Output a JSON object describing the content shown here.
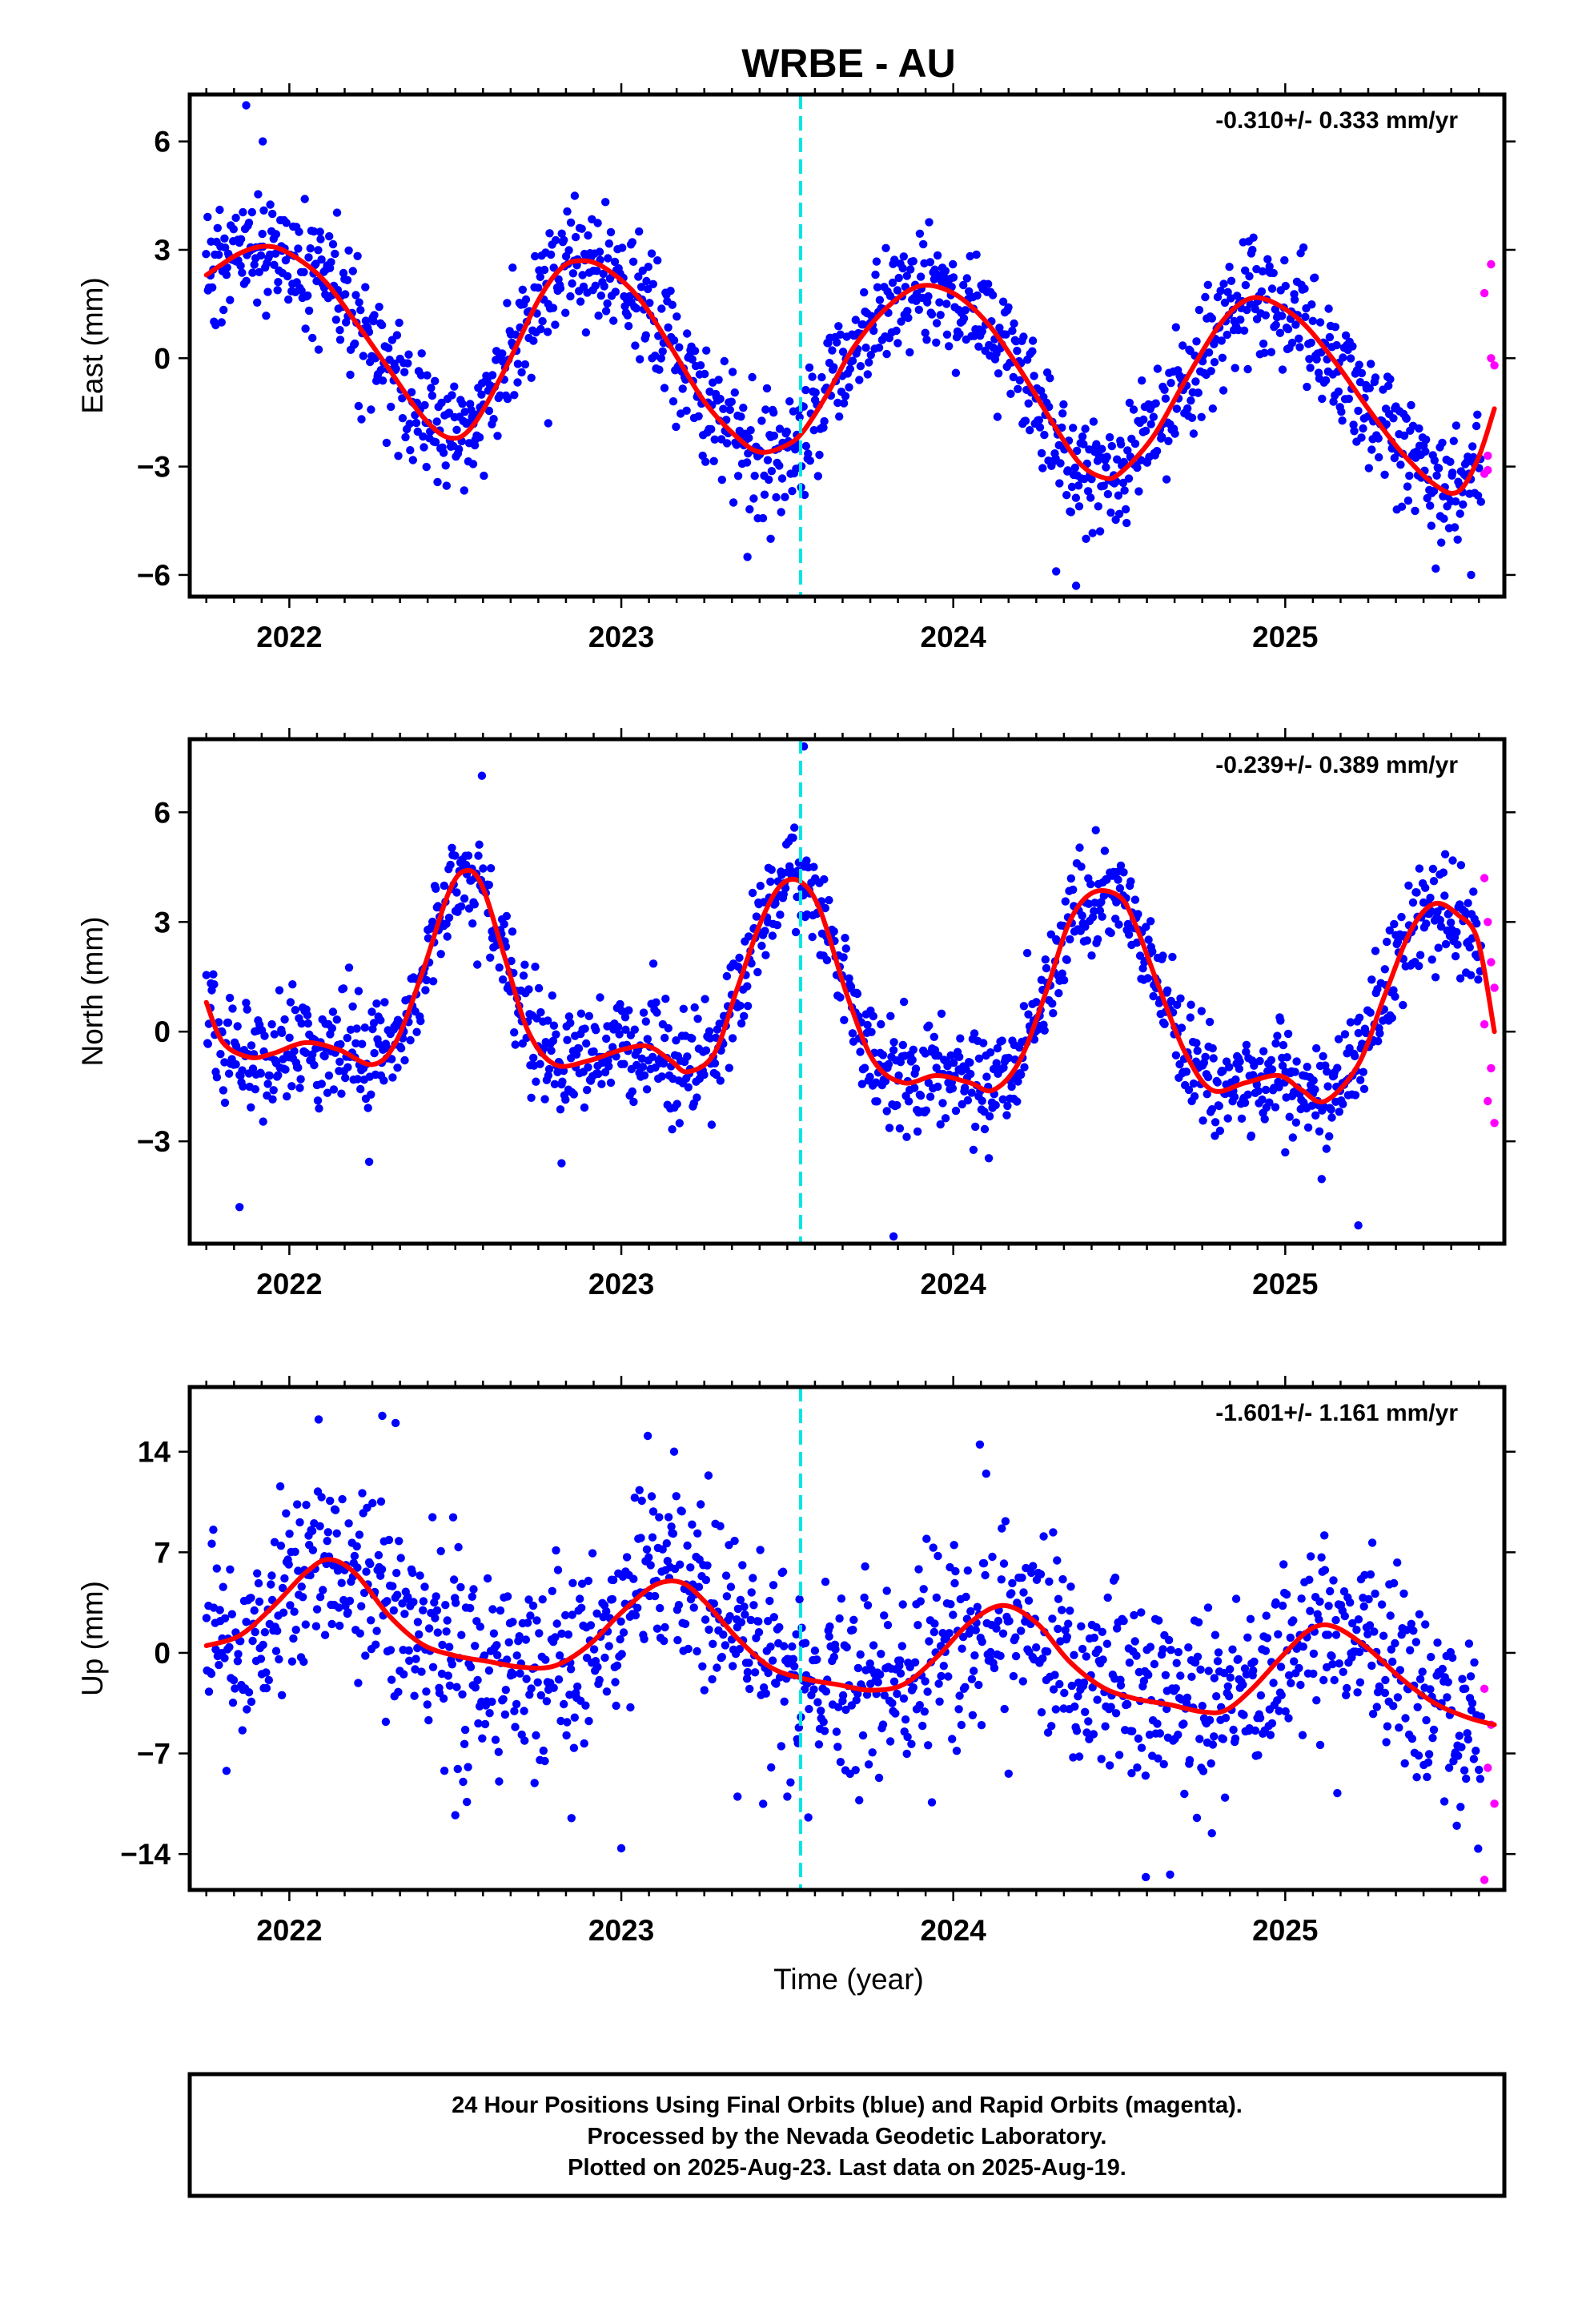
{
  "title": "WRBE - AU",
  "footer": {
    "line1": "24 Hour Positions Using Final Orbits (blue) and Rapid Orbits (magenta).",
    "line2": "Processed by the Nevada Geodetic Laboratory.",
    "line3": "Plotted on 2025-Aug-23. Last data on 2025-Aug-19."
  },
  "xlabel": "Time (year)",
  "colors": {
    "final_orbits": "#0000ff",
    "rapid_orbits": "#ff00ff",
    "model_fit": "#ff0000",
    "event_line": "#00e5e5",
    "frame": "#000000"
  },
  "chart_data": [
    {
      "type": "scatter",
      "panel": "east",
      "ylabel": "East (mm)",
      "rate_label": "-0.310+/- 0.333 mm/yr",
      "xlim": [
        2021.7,
        2025.66
      ],
      "ylim": [
        -6.6,
        7.3
      ],
      "xticks": [
        2022,
        2023,
        2024,
        2025
      ],
      "yticks": [
        -6,
        -3,
        0,
        3,
        6
      ],
      "event_line_x": 2023.54,
      "fit": {
        "x": [
          2021.75,
          2021.85,
          2021.93,
          2022.0,
          2022.1,
          2022.2,
          2022.3,
          2022.4,
          2022.48,
          2022.55,
          2022.65,
          2022.75,
          2022.82,
          2022.88,
          2022.95,
          2023.05,
          2023.15,
          2023.25,
          2023.35,
          2023.42,
          2023.5,
          2023.55,
          2023.62,
          2023.7,
          2023.8,
          2023.9,
          2024.0,
          2024.1,
          2024.2,
          2024.3,
          2024.38,
          2024.45,
          2024.5,
          2024.6,
          2024.7,
          2024.8,
          2024.88,
          2024.95,
          2025.05,
          2025.15,
          2025.25,
          2025.35,
          2025.45,
          2025.52,
          2025.58,
          2025.63
        ],
        "y": [
          2.3,
          2.9,
          3.1,
          2.9,
          2.2,
          1.0,
          -0.3,
          -1.6,
          -2.2,
          -1.9,
          -0.3,
          1.6,
          2.5,
          2.7,
          2.5,
          1.7,
          0.3,
          -1.2,
          -2.2,
          -2.6,
          -2.4,
          -2.0,
          -1.0,
          0.3,
          1.4,
          2.0,
          1.8,
          1.0,
          -0.3,
          -1.8,
          -2.9,
          -3.3,
          -3.2,
          -2.2,
          -0.6,
          0.9,
          1.6,
          1.6,
          1.0,
          -0.1,
          -1.4,
          -2.6,
          -3.5,
          -3.7,
          -2.8,
          -1.4
        ]
      },
      "rapid": {
        "x": [
          2025.6,
          2025.61,
          2025.62,
          2025.63,
          2025.6,
          2025.62,
          2025.61
        ],
        "y": [
          -3.2,
          -2.7,
          0.0,
          -0.2,
          1.8,
          2.6,
          -3.1
        ]
      },
      "final_points": {
        "count": 1350,
        "noise_sd": 0.85,
        "outliers": {
          "x": [
            2021.87,
            2021.92,
            2022.78,
            2023.38,
            2023.45,
            2024.31,
            2024.37,
            2025.56
          ],
          "y": [
            7.0,
            6.0,
            -1.8,
            -5.5,
            -5.0,
            -5.9,
            -6.3,
            -6.0
          ]
        }
      }
    },
    {
      "type": "scatter",
      "panel": "north",
      "ylabel": "North (mm)",
      "rate_label": "-0.239+/- 0.389 mm/yr",
      "xlim": [
        2021.7,
        2025.66
      ],
      "ylim": [
        -5.8,
        8.0
      ],
      "xticks": [
        2022,
        2023,
        2024,
        2025
      ],
      "yticks": [
        -3,
        0,
        3,
        6
      ],
      "event_line_x": 2023.54,
      "fit": {
        "x": [
          2021.75,
          2021.8,
          2021.88,
          2021.95,
          2022.05,
          2022.15,
          2022.25,
          2022.32,
          2022.4,
          2022.48,
          2022.53,
          2022.58,
          2022.65,
          2022.72,
          2022.8,
          2022.9,
          2023.0,
          2023.08,
          2023.15,
          2023.2,
          2023.28,
          2023.35,
          2023.42,
          2023.48,
          2023.54,
          2023.6,
          2023.68,
          2023.76,
          2023.85,
          2023.95,
          2024.05,
          2024.12,
          2024.2,
          2024.28,
          2024.35,
          2024.42,
          2024.5,
          2024.55,
          2024.62,
          2024.7,
          2024.78,
          2024.88,
          2024.98,
          2025.05,
          2025.12,
          2025.22,
          2025.3,
          2025.38,
          2025.45,
          2025.52,
          2025.58,
          2025.63
        ],
        "y": [
          0.8,
          -0.3,
          -0.7,
          -0.6,
          -0.3,
          -0.5,
          -0.9,
          -0.3,
          1.6,
          3.8,
          4.4,
          4.0,
          2.0,
          0.0,
          -0.9,
          -0.8,
          -0.5,
          -0.4,
          -0.8,
          -1.1,
          -0.6,
          1.2,
          3.0,
          4.0,
          4.1,
          3.3,
          1.0,
          -0.8,
          -1.4,
          -1.2,
          -1.4,
          -1.6,
          -0.8,
          1.1,
          3.0,
          3.8,
          3.7,
          2.9,
          1.2,
          -0.6,
          -1.6,
          -1.4,
          -1.2,
          -1.6,
          -1.9,
          -0.9,
          1.0,
          2.8,
          3.5,
          3.2,
          2.5,
          0.0
        ]
      },
      "rapid": {
        "x": [
          2025.6,
          2025.61,
          2025.62,
          2025.63,
          2025.6,
          2025.62,
          2025.61,
          2025.63
        ],
        "y": [
          4.2,
          3.0,
          1.9,
          1.2,
          0.2,
          -1.0,
          -1.9,
          -2.5
        ]
      },
      "final_points": {
        "count": 1350,
        "noise_sd": 0.75,
        "outliers": {
          "x": [
            2021.85,
            2022.58,
            2022.82,
            2023.55,
            2023.82,
            2025.0,
            2025.22
          ],
          "y": [
            -4.8,
            7.0,
            -3.6,
            7.8,
            -5.6,
            -3.3,
            -5.3
          ]
        }
      }
    },
    {
      "type": "scatter",
      "panel": "up",
      "ylabel": "Up (mm)",
      "rate_label": "-1.601+/- 1.161 mm/yr",
      "xlim": [
        2021.7,
        2025.66
      ],
      "ylim": [
        -16.5,
        18.5
      ],
      "xticks": [
        2022,
        2023,
        2024,
        2025
      ],
      "yticks": [
        -14,
        -7,
        0,
        7,
        14
      ],
      "event_line_x": 2023.54,
      "fit": {
        "x": [
          2021.75,
          2021.85,
          2021.95,
          2022.05,
          2022.12,
          2022.2,
          2022.3,
          2022.4,
          2022.5,
          2022.6,
          2022.7,
          2022.8,
          2022.9,
          2023.0,
          2023.1,
          2023.18,
          2023.25,
          2023.35,
          2023.45,
          2023.55,
          2023.65,
          2023.75,
          2023.85,
          2023.95,
          2024.05,
          2024.15,
          2024.25,
          2024.35,
          2024.45,
          2024.55,
          2024.65,
          2024.75,
          2024.82,
          2024.9,
          2025.0,
          2025.08,
          2025.15,
          2025.25,
          2025.35,
          2025.45,
          2025.55,
          2025.63
        ],
        "y": [
          0.5,
          1.2,
          3.2,
          5.6,
          6.5,
          5.5,
          2.6,
          0.6,
          -0.2,
          -0.6,
          -1.0,
          -0.9,
          0.5,
          2.8,
          4.7,
          4.9,
          3.6,
          1.0,
          -1.0,
          -1.8,
          -2.2,
          -2.6,
          -2.2,
          -0.3,
          2.1,
          3.3,
          2.1,
          -0.6,
          -2.4,
          -3.2,
          -3.6,
          -4.1,
          -4.0,
          -2.5,
          0.0,
          1.7,
          1.8,
          0.3,
          -1.8,
          -3.5,
          -4.5,
          -5.0
        ]
      },
      "rapid": {
        "x": [
          2025.6,
          2025.62,
          2025.61,
          2025.63,
          2025.6
        ],
        "y": [
          -2.5,
          -5.0,
          -8.0,
          -10.5,
          -15.8
        ]
      },
      "final_points": {
        "count": 1350,
        "noise_sd": 3.4,
        "outliers": {
          "x": [
            2022.07,
            2022.28,
            2022.32,
            2022.85,
            2023.0,
            2023.5,
            2024.08,
            2024.58,
            2023.35,
            2022.5
          ],
          "y": [
            18.8,
            16.5,
            16.0,
            -11.5,
            -13.6,
            -10.0,
            14.5,
            -15.6,
            -10.0,
            -11.3
          ]
        }
      }
    }
  ]
}
